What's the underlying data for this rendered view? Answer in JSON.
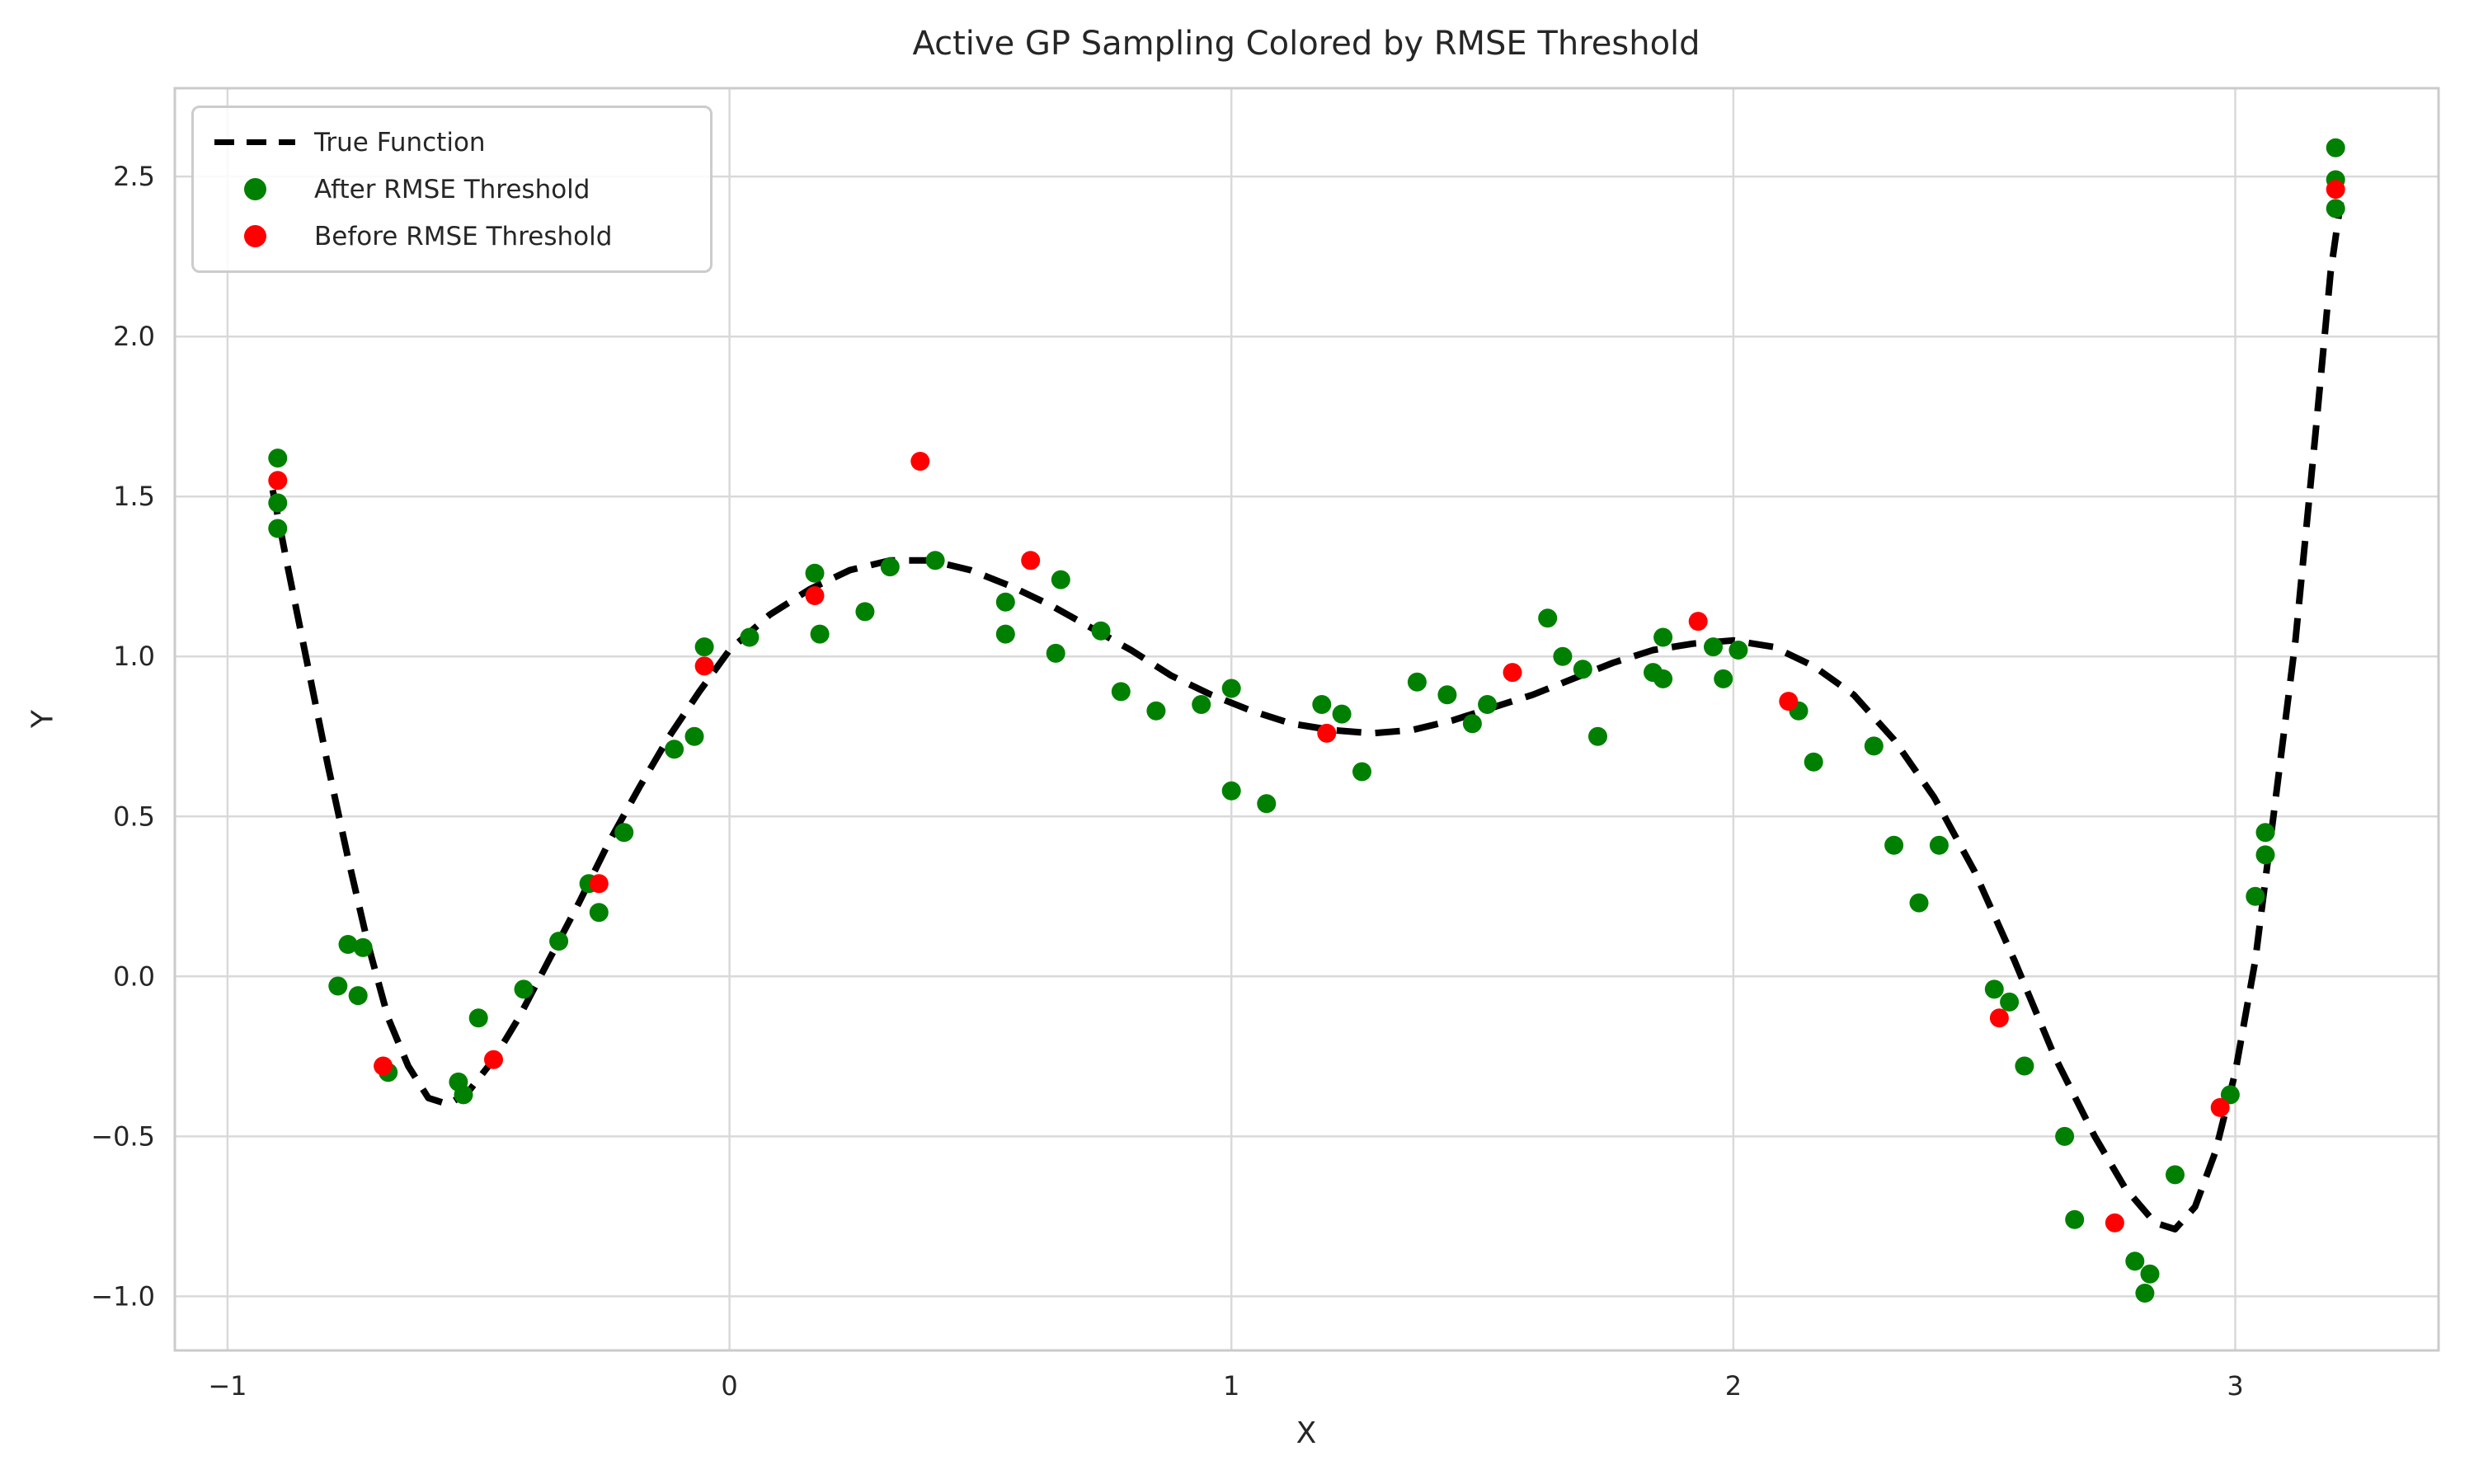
{
  "title": "Active GP Sampling Colored by RMSE Threshold",
  "axes": {
    "x_label": "X",
    "y_label": "Y",
    "x_tick_labels": [
      "−1",
      "0",
      "1",
      "2",
      "3"
    ],
    "y_tick_labels": [
      "−1.0",
      "−0.5",
      "0.0",
      "0.5",
      "1.0",
      "1.5",
      "2.0",
      "2.5"
    ]
  },
  "legend": {
    "position": "upper left",
    "items": [
      {
        "label": "True Function",
        "marker": "dashed-line",
        "color": "#000000"
      },
      {
        "label": "After RMSE Threshold",
        "marker": "dot",
        "color": "#008000"
      },
      {
        "label": "Before RMSE Threshold",
        "marker": "dot",
        "color": "#ff0000"
      }
    ]
  },
  "chart_data": {
    "type": "scatter",
    "title": "Active GP Sampling Colored by RMSE Threshold",
    "xlabel": "X",
    "ylabel": "Y",
    "xlim": [
      -1.105,
      3.405
    ],
    "ylim": [
      -1.169,
      2.776
    ],
    "x_tick_values": [
      -1,
      0,
      1,
      2,
      3
    ],
    "y_tick_values": [
      -1.0,
      -0.5,
      0.0,
      0.5,
      1.0,
      1.5,
      2.0,
      2.5
    ],
    "grid": true,
    "grid_color": "#d9d9d9",
    "spine_color": "#cbcbcb",
    "background": "#ffffff",
    "legend_position": "upper left",
    "series": [
      {
        "name": "True Function",
        "type": "line",
        "style": "dashed",
        "color": "#000000",
        "points": [
          [
            -0.91,
            1.52
          ],
          [
            -0.88,
            1.28
          ],
          [
            -0.84,
            0.97
          ],
          [
            -0.8,
            0.66
          ],
          [
            -0.76,
            0.37
          ],
          [
            -0.72,
            0.1
          ],
          [
            -0.68,
            -0.13
          ],
          [
            -0.64,
            -0.28
          ],
          [
            -0.6,
            -0.38
          ],
          [
            -0.56,
            -0.4
          ],
          [
            -0.52,
            -0.36
          ],
          [
            -0.47,
            -0.26
          ],
          [
            -0.42,
            -0.13
          ],
          [
            -0.36,
            0.05
          ],
          [
            -0.3,
            0.23
          ],
          [
            -0.24,
            0.42
          ],
          [
            -0.18,
            0.59
          ],
          [
            -0.12,
            0.75
          ],
          [
            -0.06,
            0.89
          ],
          [
            0.0,
            1.02
          ],
          [
            0.08,
            1.13
          ],
          [
            0.16,
            1.21
          ],
          [
            0.24,
            1.27
          ],
          [
            0.32,
            1.3
          ],
          [
            0.4,
            1.3
          ],
          [
            0.48,
            1.27
          ],
          [
            0.56,
            1.22
          ],
          [
            0.64,
            1.16
          ],
          [
            0.72,
            1.09
          ],
          [
            0.8,
            1.02
          ],
          [
            0.88,
            0.94
          ],
          [
            0.96,
            0.88
          ],
          [
            1.04,
            0.83
          ],
          [
            1.12,
            0.79
          ],
          [
            1.2,
            0.77
          ],
          [
            1.28,
            0.76
          ],
          [
            1.36,
            0.77
          ],
          [
            1.44,
            0.8
          ],
          [
            1.52,
            0.84
          ],
          [
            1.6,
            0.88
          ],
          [
            1.68,
            0.93
          ],
          [
            1.76,
            0.98
          ],
          [
            1.84,
            1.02
          ],
          [
            1.92,
            1.04
          ],
          [
            2.0,
            1.05
          ],
          [
            2.08,
            1.03
          ],
          [
            2.16,
            0.97
          ],
          [
            2.24,
            0.88
          ],
          [
            2.32,
            0.74
          ],
          [
            2.4,
            0.56
          ],
          [
            2.48,
            0.33
          ],
          [
            2.56,
            0.05
          ],
          [
            2.64,
            -0.25
          ],
          [
            2.72,
            -0.5
          ],
          [
            2.78,
            -0.66
          ],
          [
            2.84,
            -0.77
          ],
          [
            2.88,
            -0.79
          ],
          [
            2.92,
            -0.72
          ],
          [
            2.96,
            -0.55
          ],
          [
            3.0,
            -0.3
          ],
          [
            3.04,
            0.05
          ],
          [
            3.08,
            0.55
          ],
          [
            3.12,
            1.05
          ],
          [
            3.16,
            1.7
          ],
          [
            3.19,
            2.2
          ],
          [
            3.21,
            2.42
          ]
        ]
      },
      {
        "name": "After RMSE Threshold",
        "type": "scatter",
        "color": "#008000",
        "points": [
          [
            -0.9,
            1.62
          ],
          [
            -0.9,
            1.48
          ],
          [
            -0.9,
            1.4
          ],
          [
            -0.78,
            -0.03
          ],
          [
            -0.76,
            0.1
          ],
          [
            -0.74,
            -0.06
          ],
          [
            -0.73,
            0.09
          ],
          [
            -0.68,
            -0.3
          ],
          [
            -0.54,
            -0.33
          ],
          [
            -0.53,
            -0.37
          ],
          [
            -0.5,
            -0.13
          ],
          [
            -0.41,
            -0.04
          ],
          [
            -0.34,
            0.11
          ],
          [
            -0.28,
            0.29
          ],
          [
            -0.26,
            0.2
          ],
          [
            -0.21,
            0.45
          ],
          [
            -0.11,
            0.71
          ],
          [
            -0.07,
            0.75
          ],
          [
            -0.05,
            1.03
          ],
          [
            0.04,
            1.06
          ],
          [
            0.17,
            1.26
          ],
          [
            0.18,
            1.07
          ],
          [
            0.27,
            1.14
          ],
          [
            0.32,
            1.28
          ],
          [
            0.41,
            1.3
          ],
          [
            0.55,
            1.17
          ],
          [
            0.55,
            1.07
          ],
          [
            0.65,
            1.01
          ],
          [
            0.66,
            1.24
          ],
          [
            0.74,
            1.08
          ],
          [
            0.78,
            0.89
          ],
          [
            0.85,
            0.83
          ],
          [
            0.94,
            0.85
          ],
          [
            1.0,
            0.9
          ],
          [
            1.0,
            0.58
          ],
          [
            1.07,
            0.54
          ],
          [
            1.18,
            0.85
          ],
          [
            1.22,
            0.82
          ],
          [
            1.26,
            0.64
          ],
          [
            1.37,
            0.92
          ],
          [
            1.43,
            0.88
          ],
          [
            1.48,
            0.79
          ],
          [
            1.51,
            0.85
          ],
          [
            1.63,
            1.12
          ],
          [
            1.66,
            1.0
          ],
          [
            1.7,
            0.96
          ],
          [
            1.73,
            0.75
          ],
          [
            1.84,
            0.95
          ],
          [
            1.86,
            0.93
          ],
          [
            1.86,
            1.06
          ],
          [
            1.96,
            1.03
          ],
          [
            1.98,
            0.93
          ],
          [
            2.01,
            1.02
          ],
          [
            2.13,
            0.83
          ],
          [
            2.16,
            0.67
          ],
          [
            2.28,
            0.72
          ],
          [
            2.32,
            0.41
          ],
          [
            2.37,
            0.23
          ],
          [
            2.41,
            0.41
          ],
          [
            2.52,
            -0.04
          ],
          [
            2.55,
            -0.08
          ],
          [
            2.58,
            -0.28
          ],
          [
            2.66,
            -0.5
          ],
          [
            2.68,
            -0.76
          ],
          [
            2.8,
            -0.89
          ],
          [
            2.82,
            -0.99
          ],
          [
            2.83,
            -0.93
          ],
          [
            2.88,
            -0.62
          ],
          [
            2.99,
            -0.37
          ],
          [
            3.04,
            0.25
          ],
          [
            3.06,
            0.45
          ],
          [
            3.06,
            0.38
          ],
          [
            3.2,
            2.59
          ],
          [
            3.2,
            2.49
          ],
          [
            3.2,
            2.4
          ]
        ]
      },
      {
        "name": "Before RMSE Threshold",
        "type": "scatter",
        "color": "#ff0000",
        "points": [
          [
            -0.9,
            1.55
          ],
          [
            -0.69,
            -0.28
          ],
          [
            -0.47,
            -0.26
          ],
          [
            -0.26,
            0.29
          ],
          [
            -0.05,
            0.97
          ],
          [
            0.17,
            1.19
          ],
          [
            0.38,
            1.61
          ],
          [
            0.6,
            1.3
          ],
          [
            1.19,
            0.76
          ],
          [
            1.56,
            0.95
          ],
          [
            1.93,
            1.11
          ],
          [
            2.11,
            0.86
          ],
          [
            2.53,
            -0.13
          ],
          [
            2.76,
            -0.77
          ],
          [
            2.97,
            -0.41
          ],
          [
            3.2,
            2.46
          ]
        ]
      }
    ]
  }
}
